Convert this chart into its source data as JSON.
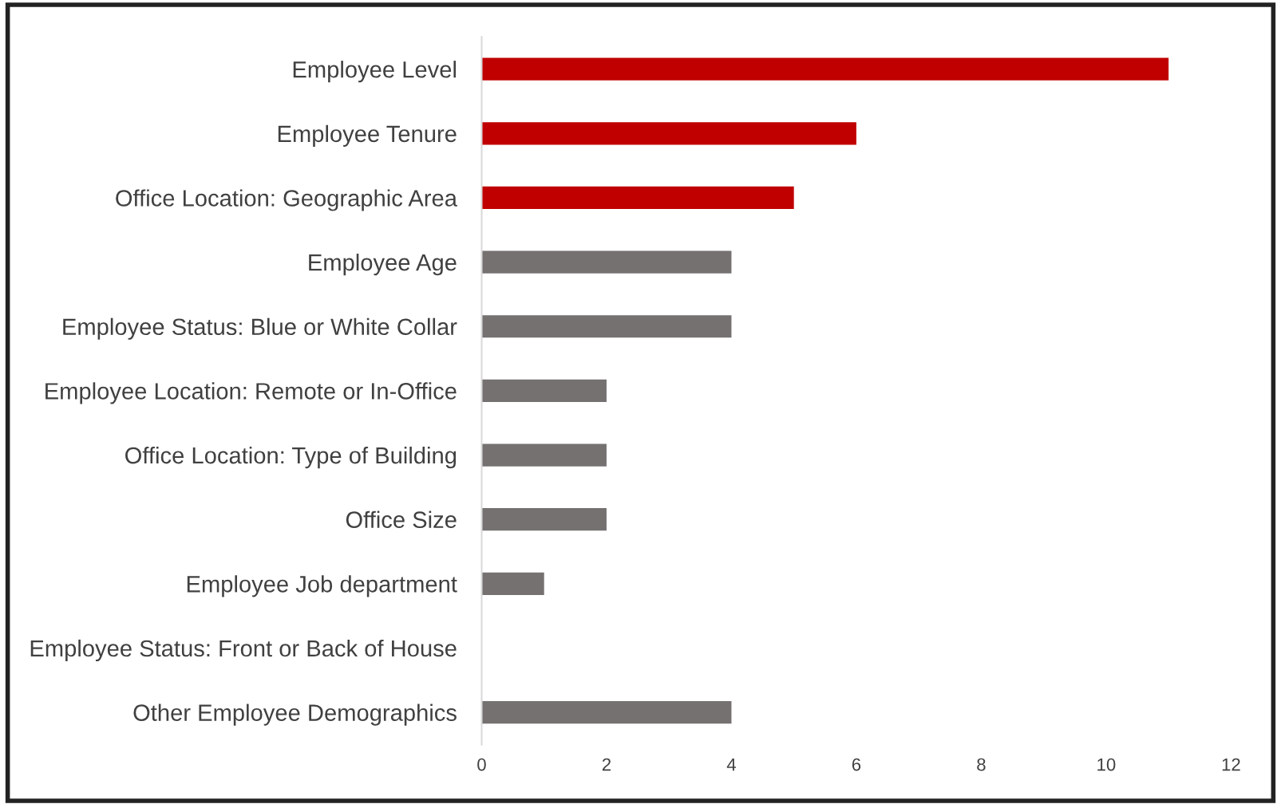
{
  "chart_data": {
    "type": "bar",
    "orientation": "horizontal",
    "categories": [
      "Employee Level",
      "Employee Tenure",
      "Office Location: Geographic Area",
      "Employee Age",
      "Employee Status: Blue or White Collar",
      "Employee Location: Remote or In-Office",
      "Office Location: Type of Building",
      "Office Size",
      "Employee Job department",
      "Employee Status: Front or Back of House",
      "Other Employee Demographics"
    ],
    "values": [
      11,
      6,
      5,
      4,
      4,
      2,
      2,
      2,
      1,
      0,
      4
    ],
    "colors": [
      "#c00000",
      "#c00000",
      "#c00000",
      "#757171",
      "#757171",
      "#757171",
      "#757171",
      "#757171",
      "#757171",
      "#757171",
      "#757171"
    ],
    "xlim": [
      0,
      12
    ],
    "xticks": [
      0,
      2,
      4,
      6,
      8,
      10,
      12
    ],
    "grid": false
  }
}
